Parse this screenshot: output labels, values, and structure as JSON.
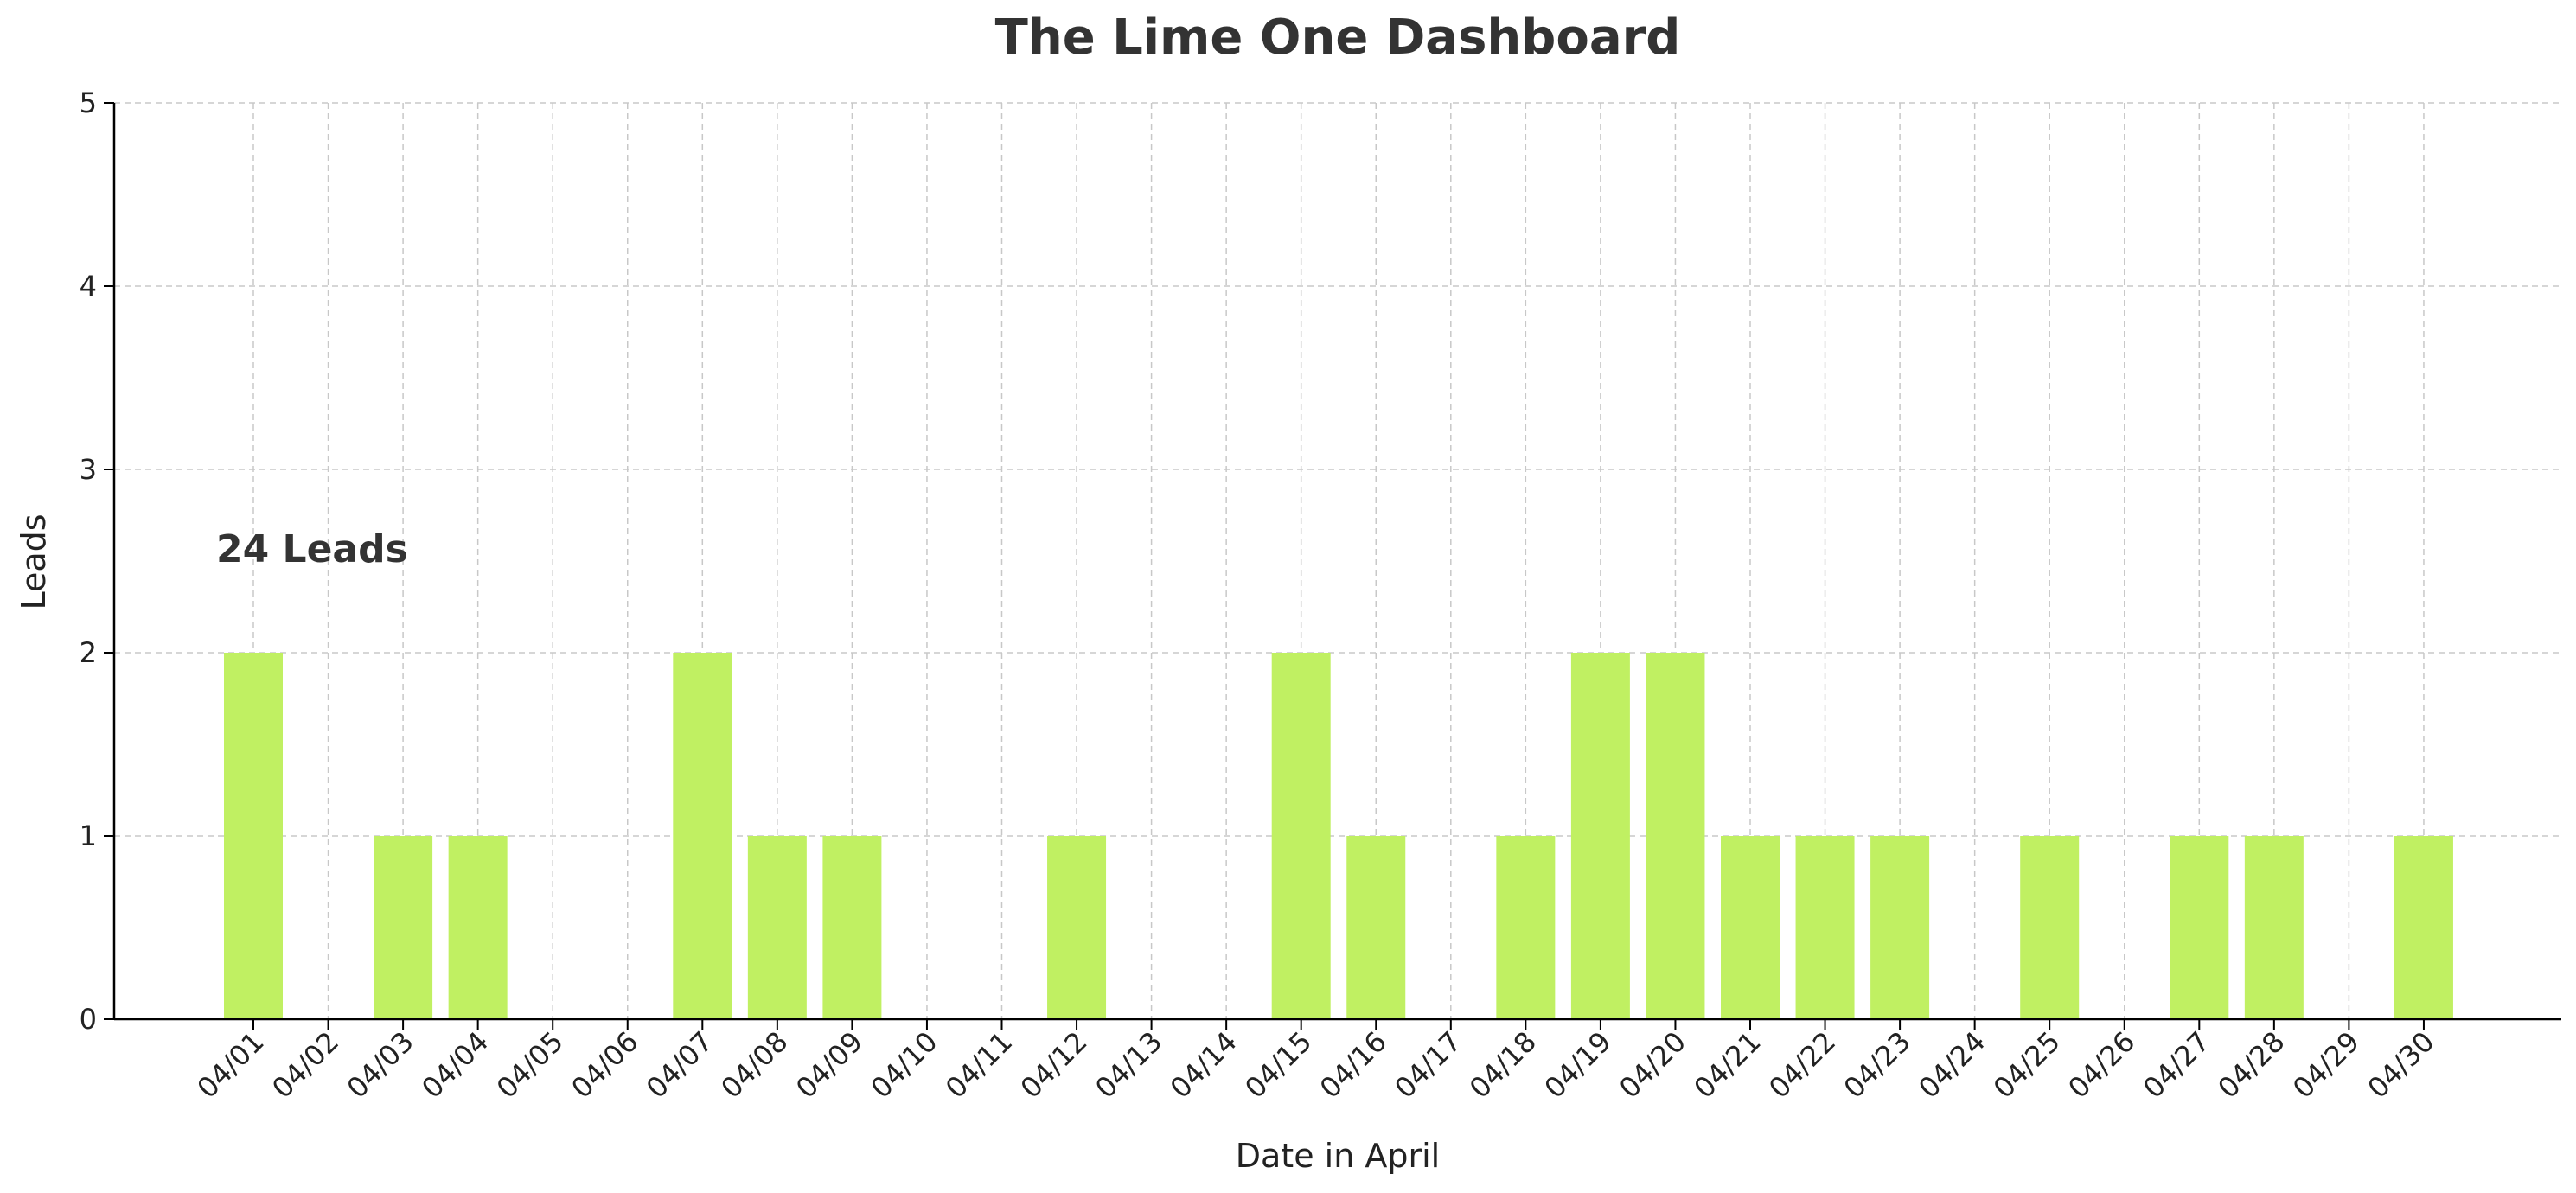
{
  "chart_data": {
    "type": "bar",
    "title": "The Lime One Dashboard",
    "xlabel": "Date in April",
    "ylabel": "Leads",
    "ylim": [
      0,
      5
    ],
    "yticks": [
      "0",
      "1",
      "2",
      "3",
      "4",
      "5"
    ],
    "categories": [
      "04/01",
      "04/02",
      "04/03",
      "04/04",
      "04/05",
      "04/06",
      "04/07",
      "04/08",
      "04/09",
      "04/10",
      "04/11",
      "04/12",
      "04/13",
      "04/14",
      "04/15",
      "04/16",
      "04/17",
      "04/18",
      "04/19",
      "04/20",
      "04/21",
      "04/22",
      "04/23",
      "04/24",
      "04/25",
      "04/26",
      "04/27",
      "04/28",
      "04/29",
      "04/30"
    ],
    "values": [
      2,
      0,
      1,
      1,
      0,
      0,
      2,
      1,
      1,
      0,
      0,
      1,
      0,
      0,
      2,
      1,
      0,
      1,
      2,
      2,
      1,
      1,
      1,
      0,
      1,
      0,
      1,
      1,
      0,
      1
    ],
    "bar_color": "#c0f062",
    "grid": true,
    "annotation": "24 Leads"
  }
}
